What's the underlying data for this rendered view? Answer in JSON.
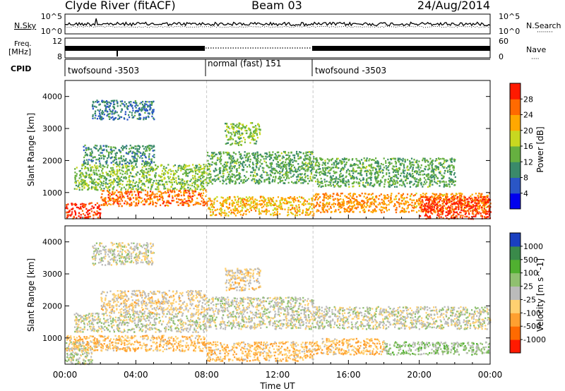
{
  "header": {
    "station": "Clyde River (fitACF)",
    "beam": "Beam 03",
    "date": "24/Aug/2014"
  },
  "noise_panel": {
    "left_label": "N.Sky",
    "right_label": "N.Search",
    "left_ticks": [
      "10^5",
      "10^0"
    ],
    "right_ticks": [
      "10^5",
      "10^0"
    ]
  },
  "freq_panel": {
    "left_label_1": "Freq.",
    "left_label_2": "[MHz]",
    "right_label": "Nave",
    "left_ticks": [
      "12",
      "8"
    ],
    "right_ticks": [
      "60",
      "0"
    ]
  },
  "cpid": {
    "label": "CPID",
    "segments": [
      {
        "name": "twofsound  -3503",
        "start_hour": 0,
        "end_hour": 8
      },
      {
        "name": "normal (fast) 151",
        "start_hour": 8,
        "end_hour": 14
      },
      {
        "name": "twofsound  -3503",
        "start_hour": 14,
        "end_hour": 24
      }
    ]
  },
  "time_axis": {
    "label": "Time UT",
    "range_hours": [
      0,
      24
    ],
    "ticks": [
      "00:00",
      "04:00",
      "08:00",
      "12:00",
      "16:00",
      "20:00",
      "00:00"
    ]
  },
  "range_axis": {
    "label": "Slant Range [km]",
    "range_km": [
      180,
      4500
    ],
    "ticks": [
      "1000",
      "2000",
      "3000",
      "4000"
    ]
  },
  "chart_data": [
    {
      "type": "heatmap",
      "name": "Power",
      "colorbar_label": "Power [dB]",
      "colorbar_ticks": [
        "28",
        "24",
        "20",
        "16",
        "12",
        "8",
        "4"
      ],
      "value_range": [
        0,
        30
      ],
      "colors": [
        "#0000ee",
        "#2a56c6",
        "#3a8a6a",
        "#66b040",
        "#c8d820",
        "#ffa800",
        "#ff6a00",
        "#ff1a00"
      ],
      "bands": [
        {
          "t0": 0,
          "t1": 2,
          "r0": 200,
          "r1": 700,
          "level": 28
        },
        {
          "t0": 2,
          "t1": 8,
          "r0": 600,
          "r1": 1100,
          "level": 24
        },
        {
          "t0": 0.5,
          "t1": 8,
          "r0": 1100,
          "r1": 1900,
          "level": 14
        },
        {
          "t0": 1,
          "t1": 5,
          "r0": 1900,
          "r1": 2500,
          "level": 10
        },
        {
          "t0": 1.5,
          "t1": 5,
          "r0": 3300,
          "r1": 3900,
          "level": 8
        },
        {
          "t0": 8,
          "t1": 14,
          "r0": 300,
          "r1": 900,
          "level": 20
        },
        {
          "t0": 8,
          "t1": 14,
          "r0": 1300,
          "r1": 2300,
          "level": 12
        },
        {
          "t0": 9,
          "t1": 11,
          "r0": 2500,
          "r1": 3200,
          "level": 14
        },
        {
          "t0": 14,
          "t1": 24,
          "r0": 400,
          "r1": 1000,
          "level": 22
        },
        {
          "t0": 14,
          "t1": 22,
          "r0": 1200,
          "r1": 2100,
          "level": 12
        },
        {
          "t0": 20,
          "t1": 24,
          "r0": 200,
          "r1": 900,
          "level": 28
        }
      ]
    },
    {
      "type": "heatmap",
      "name": "Velocity",
      "colorbar_label": "Velocity [m s^-1]",
      "colorbar_ticks": [
        "1000",
        "500",
        "100",
        "25",
        "-25",
        "-100",
        "-500",
        "-1000"
      ],
      "value_range": [
        -1000,
        1000
      ],
      "colors": [
        "#ff1a00",
        "#ff6a00",
        "#ffa030",
        "#ffd070",
        "#bbbbbb",
        "#90c070",
        "#50b030",
        "#3a8a4a",
        "#1a40c0"
      ],
      "bands": [
        {
          "t0": 0,
          "t1": 8,
          "r0": 600,
          "r1": 1100,
          "level": -300
        },
        {
          "t0": 0,
          "t1": 1.5,
          "r0": 200,
          "r1": 900,
          "level": 0
        },
        {
          "t0": 0.5,
          "t1": 8,
          "r0": 1200,
          "r1": 1800,
          "level": 0
        },
        {
          "t0": 2,
          "t1": 8,
          "r0": 1800,
          "r1": 2500,
          "level": -150
        },
        {
          "t0": 1.5,
          "t1": 5,
          "r0": 3300,
          "r1": 4000,
          "level": 0
        },
        {
          "t0": 8,
          "t1": 14,
          "r0": 300,
          "r1": 900,
          "level": -300
        },
        {
          "t0": 8,
          "t1": 14,
          "r0": 1300,
          "r1": 2300,
          "level": 0
        },
        {
          "t0": 9,
          "t1": 11,
          "r0": 2500,
          "r1": 3200,
          "level": -150
        },
        {
          "t0": 14,
          "t1": 24,
          "r0": 1300,
          "r1": 2000,
          "level": 0
        },
        {
          "t0": 14,
          "t1": 18,
          "r0": 500,
          "r1": 1000,
          "level": -300
        },
        {
          "t0": 18,
          "t1": 24,
          "r0": 500,
          "r1": 900,
          "level": 200
        }
      ]
    }
  ]
}
